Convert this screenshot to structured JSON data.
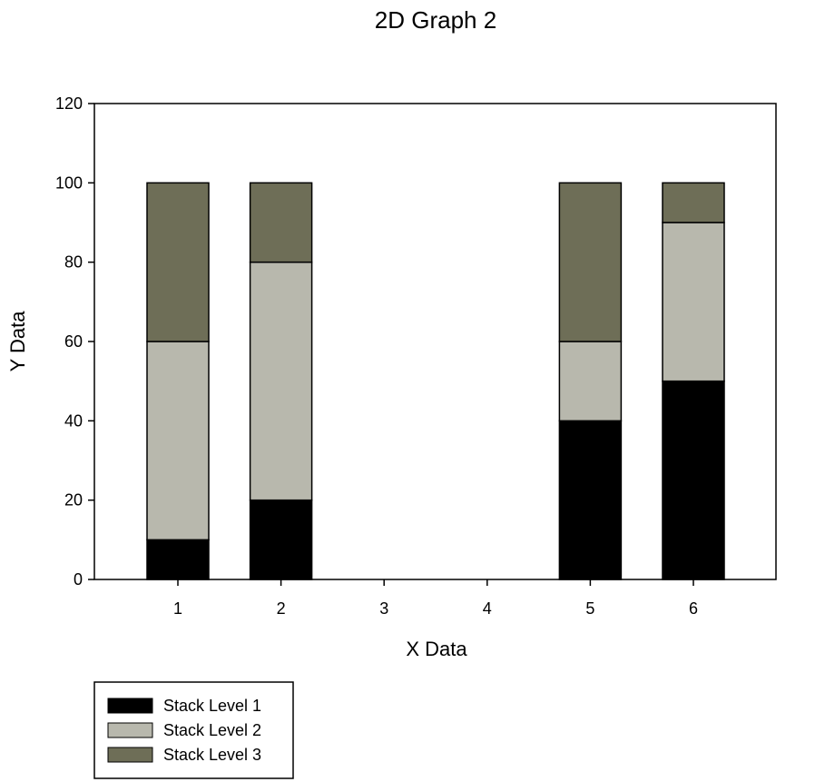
{
  "chart_data": {
    "type": "bar",
    "stacked": true,
    "title": "2D Graph 2",
    "xlabel": "X Data",
    "ylabel": "Y Data",
    "categories": [
      "1",
      "2",
      "3",
      "4",
      "5",
      "6"
    ],
    "ylim": [
      0,
      120
    ],
    "yticks": [
      0,
      20,
      40,
      60,
      80,
      100,
      120
    ],
    "grid": false,
    "legend_position": "bottom-left",
    "series": [
      {
        "name": "Stack Level 1",
        "color": "#000000",
        "values": [
          10,
          20,
          null,
          null,
          40,
          50
        ]
      },
      {
        "name": "Stack Level 2",
        "color": "#b8b8ad",
        "values": [
          50,
          60,
          null,
          null,
          20,
          40
        ]
      },
      {
        "name": "Stack Level 3",
        "color": "#6e6e57",
        "values": [
          40,
          20,
          null,
          null,
          40,
          10
        ]
      }
    ]
  }
}
